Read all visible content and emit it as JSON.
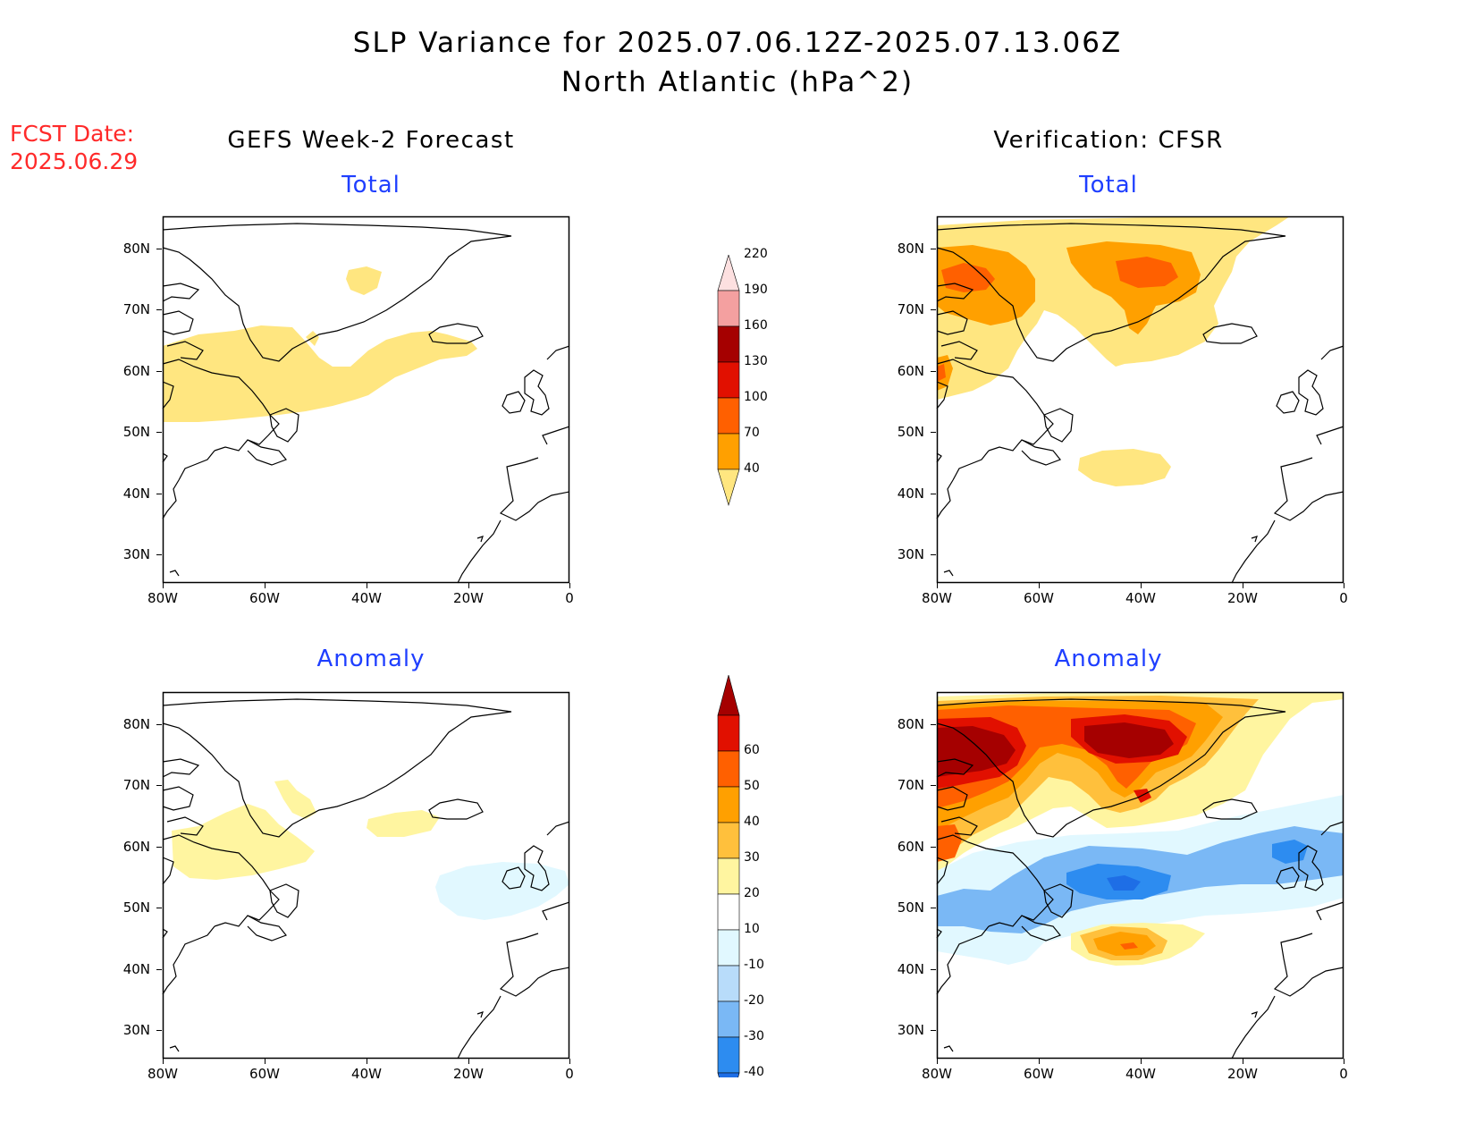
{
  "header": {
    "title_line1": "SLP Variance for 2025.07.06.12Z-2025.07.13.06Z",
    "title_line2": "North Atlantic (hPa^2)",
    "fcst_label": "FCST Date:",
    "fcst_date": "2025.06.29"
  },
  "columns": {
    "left_title": "GEFS Week-2 Forecast",
    "right_title": "Verification: CFSR"
  },
  "panels": {
    "total_label": "Total",
    "anomaly_label": "Anomaly"
  },
  "axes": {
    "lat_ticks": [
      "80N",
      "70N",
      "60N",
      "50N",
      "40N",
      "30N"
    ],
    "lon_ticks": [
      "80W",
      "60W",
      "40W",
      "20W",
      "0"
    ]
  },
  "colorbars": {
    "total": {
      "levels": [
        "40",
        "70",
        "100",
        "130",
        "160",
        "190",
        "220"
      ],
      "colors": [
        "#ffe680",
        "#ffa000",
        "#ff6000",
        "#e11000",
        "#a50000",
        "#f4a0a0",
        "#fde0e0"
      ]
    },
    "anomaly": {
      "levels": [
        "-40",
        "-30",
        "-20",
        "-10",
        "10",
        "20",
        "30",
        "40",
        "50",
        "60"
      ],
      "colors": [
        "#1e6ee6",
        "#2d8cf0",
        "#7ab8f5",
        "#b8dcfa",
        "#e1f8ff",
        "#ffffff",
        "#fff5a0",
        "#ffc03c",
        "#ffa000",
        "#ff6000",
        "#e11000",
        "#a50000"
      ]
    }
  }
}
